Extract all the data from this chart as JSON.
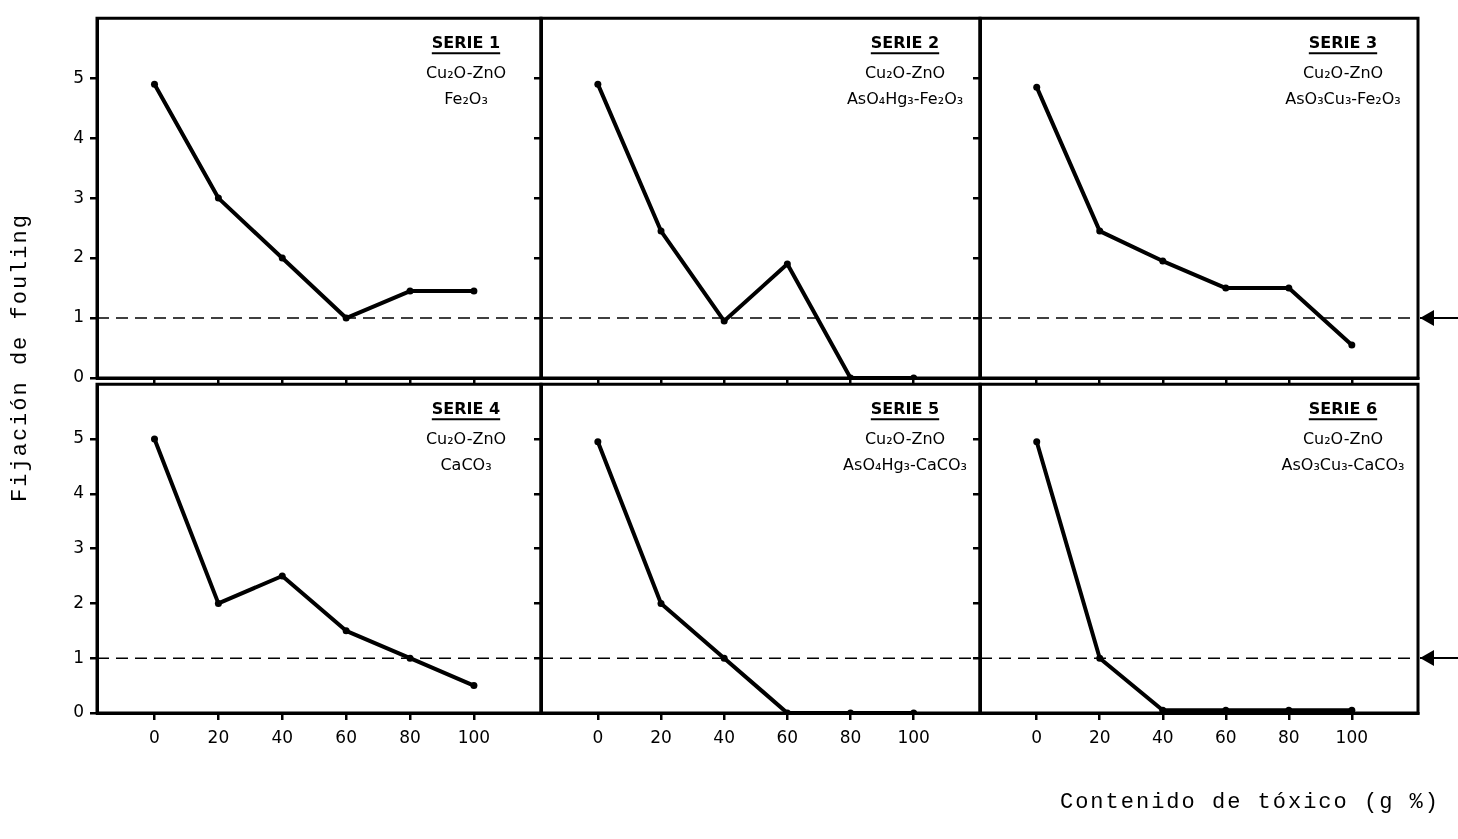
{
  "chart_data": [
    {
      "type": "line",
      "title": "SERIE 1",
      "annotations": [
        "Cu₂O-ZnO",
        "Fe₂O₃"
      ],
      "ylabel": "Fijación de fouling",
      "x": [
        0,
        20,
        40,
        60,
        80,
        100
      ],
      "series": [
        {
          "color": "#000000",
          "values": [
            4.9,
            3.0,
            2.0,
            1.0,
            1.45,
            1.45
          ]
        }
      ],
      "xlim": [
        -18,
        121
      ],
      "ylim": [
        0,
        6
      ],
      "xticks": [
        0,
        20,
        40,
        60,
        80,
        100
      ],
      "yticks": [
        0,
        1,
        2,
        3,
        4,
        5
      ],
      "ref_lines": [
        {
          "axis": "y",
          "value": 1,
          "line_style": "dashed"
        }
      ],
      "tick_labels": "y",
      "marker": "circle",
      "line_style": "solid",
      "grid": false,
      "legend": false
    },
    {
      "type": "line",
      "title": "SERIE 2",
      "annotations": [
        "Cu₂O-ZnO",
        "AsO₄Hg₃-Fe₂O₃"
      ],
      "x": [
        0,
        20,
        40,
        60,
        80,
        100
      ],
      "series": [
        {
          "color": "#000000",
          "values": [
            4.9,
            2.45,
            0.95,
            1.9,
            0,
            0
          ]
        }
      ],
      "xlim": [
        -18,
        121
      ],
      "ylim": [
        0,
        6
      ],
      "xticks": [
        0,
        20,
        40,
        60,
        80,
        100
      ],
      "yticks": [
        0,
        1,
        2,
        3,
        4,
        5
      ],
      "ref_lines": [
        {
          "axis": "y",
          "value": 1,
          "line_style": "dashed"
        }
      ],
      "tick_labels": false,
      "marker": "circle",
      "line_style": "solid",
      "grid": false,
      "legend": false
    },
    {
      "type": "line",
      "title": "SERIE 3",
      "annotations": [
        "Cu₂O-ZnO",
        "AsO₃Cu₃-Fe₂O₃"
      ],
      "x": [
        0,
        20,
        40,
        60,
        80,
        100
      ],
      "series": [
        {
          "color": "#000000",
          "values": [
            4.85,
            2.45,
            1.95,
            1.5,
            1.5,
            0.55
          ]
        }
      ],
      "xlim": [
        -18,
        121
      ],
      "ylim": [
        0,
        6
      ],
      "xticks": [
        0,
        20,
        40,
        60,
        80,
        100
      ],
      "yticks": [
        0,
        1,
        2,
        3,
        4,
        5
      ],
      "ref_lines": [
        {
          "axis": "y",
          "value": 1,
          "line_style": "dashed"
        }
      ],
      "tick_labels": false,
      "marker": "circle",
      "line_style": "solid",
      "grid": false,
      "legend": false
    },
    {
      "type": "line",
      "title": "SERIE 4",
      "annotations": [
        "Cu₂O-ZnO",
        "CaCO₃"
      ],
      "x": [
        0,
        20,
        40,
        60,
        80,
        100
      ],
      "series": [
        {
          "color": "#000000",
          "values": [
            5.0,
            2.0,
            2.5,
            1.5,
            1.0,
            0.5
          ]
        }
      ],
      "xlim": [
        -18,
        121
      ],
      "ylim": [
        0,
        6
      ],
      "xticks": [
        0,
        20,
        40,
        60,
        80,
        100
      ],
      "yticks": [
        0,
        1,
        2,
        3,
        4,
        5
      ],
      "ref_lines": [
        {
          "axis": "y",
          "value": 1,
          "line_style": "dashed"
        }
      ],
      "marker": "circle",
      "line_style": "solid",
      "grid": false,
      "legend": false
    },
    {
      "type": "line",
      "title": "SERIE 5",
      "annotations": [
        "Cu₂O-ZnO",
        "AsO₄Hg₃-CaCO₃"
      ],
      "x": [
        0,
        20,
        40,
        60,
        80,
        100
      ],
      "series": [
        {
          "color": "#000000",
          "values": [
            4.95,
            2.0,
            1.0,
            0,
            0,
            0
          ]
        }
      ],
      "xlim": [
        -18,
        121
      ],
      "ylim": [
        0,
        6
      ],
      "xticks": [
        0,
        20,
        40,
        60,
        80,
        100
      ],
      "yticks": [
        0,
        1,
        2,
        3,
        4,
        5
      ],
      "ref_lines": [
        {
          "axis": "y",
          "value": 1,
          "line_style": "dashed"
        }
      ],
      "tick_labels": "x",
      "marker": "circle",
      "line_style": "solid",
      "grid": false,
      "legend": false
    },
    {
      "type": "line",
      "title": "SERIE 6",
      "annotations": [
        "Cu₂O-ZnO",
        "AsO₃Cu₃-CaCO₃"
      ],
      "xlabel": "Contenido de tóxico (g %)",
      "x": [
        0,
        20,
        40,
        60,
        80,
        100
      ],
      "series": [
        {
          "color": "#000000",
          "values": [
            4.95,
            1.0,
            0.05,
            0.05,
            0.05,
            0.05
          ]
        }
      ],
      "xlim": [
        -18,
        121
      ],
      "ylim": [
        0,
        6
      ],
      "xticks": [
        0,
        20,
        40,
        60,
        80,
        100
      ],
      "yticks": [
        0,
        1,
        2,
        3,
        4,
        5
      ],
      "ref_lines": [
        {
          "axis": "y",
          "value": 1,
          "line_style": "dashed"
        }
      ],
      "tick_labels": "x",
      "marker": "circle",
      "line_style": "solid",
      "grid": false,
      "legend": false
    }
  ]
}
